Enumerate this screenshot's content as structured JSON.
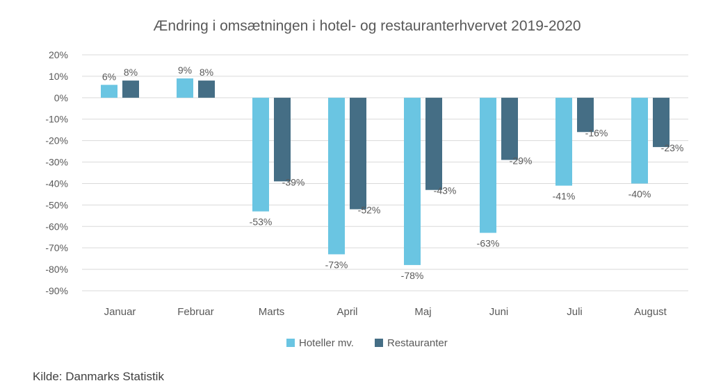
{
  "chart_data": {
    "type": "bar",
    "title": "Ændring i omsætningen i hotel- og restauranterhvervet 2019-2020",
    "categories": [
      "Januar",
      "Februar",
      "Marts",
      "April",
      "Maj",
      "Juni",
      "Juli",
      "August"
    ],
    "series": [
      {
        "name": "Hoteller mv.",
        "color": "#6ac5e2",
        "values": [
          6,
          9,
          -53,
          -73,
          -78,
          -63,
          -41,
          -40
        ],
        "labels": [
          "6%",
          "9%",
          "-53%",
          "-73%",
          "-78%",
          "-63%",
          "-41%",
          "-40%"
        ]
      },
      {
        "name": "Restauranter",
        "color": "#456e85",
        "values": [
          8,
          8,
          -39,
          -52,
          -43,
          -29,
          -16,
          -23
        ],
        "labels": [
          "8%",
          "8%",
          "-39%",
          "-52%",
          "-43%",
          "-29%",
          "-16%",
          "-23%"
        ]
      }
    ],
    "ylim": [
      -90,
      20
    ],
    "yticks": [
      20,
      10,
      0,
      -10,
      -20,
      -30,
      -40,
      -50,
      -60,
      -70,
      -80,
      -90
    ],
    "ytick_labels": [
      "20%",
      "10%",
      "0%",
      "-10%",
      "-20%",
      "-30%",
      "-40%",
      "-50%",
      "-60%",
      "-70%",
      "-80%",
      "-90%"
    ],
    "grid": true,
    "legend_position": "bottom"
  },
  "source": "Kilde: Danmarks Statistik"
}
